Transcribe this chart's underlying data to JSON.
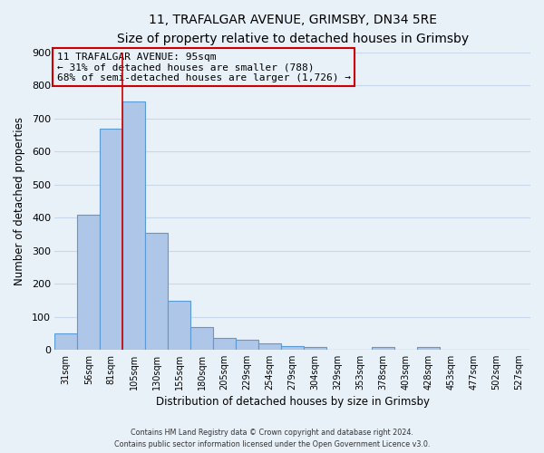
{
  "title": "11, TRAFALGAR AVENUE, GRIMSBY, DN34 5RE",
  "subtitle": "Size of property relative to detached houses in Grimsby",
  "xlabel": "Distribution of detached houses by size in Grimsby",
  "ylabel": "Number of detached properties",
  "bar_labels": [
    "31sqm",
    "56sqm",
    "81sqm",
    "105sqm",
    "130sqm",
    "155sqm",
    "180sqm",
    "205sqm",
    "229sqm",
    "254sqm",
    "279sqm",
    "304sqm",
    "329sqm",
    "353sqm",
    "378sqm",
    "403sqm",
    "428sqm",
    "453sqm",
    "477sqm",
    "502sqm",
    "527sqm"
  ],
  "bar_values": [
    50,
    410,
    670,
    750,
    355,
    150,
    70,
    38,
    30,
    20,
    12,
    8,
    0,
    0,
    8,
    0,
    10,
    0,
    0,
    0,
    0
  ],
  "bar_color": "#aec6e8",
  "bar_edge_color": "#5b9bd5",
  "grid_color": "#c8d8e8",
  "background_color": "#e8f0f8",
  "vline_x": 2.5,
  "vline_color": "#cc0000",
  "annotation_line1": "11 TRAFALGAR AVENUE: 95sqm",
  "annotation_line2": "← 31% of detached houses are smaller (788)",
  "annotation_line3": "68% of semi-detached houses are larger (1,726) →",
  "annotation_box_color": "#cc0000",
  "ylim": [
    0,
    900
  ],
  "yticks": [
    0,
    100,
    200,
    300,
    400,
    500,
    600,
    700,
    800,
    900
  ],
  "footer_line1": "Contains HM Land Registry data © Crown copyright and database right 2024.",
  "footer_line2": "Contains public sector information licensed under the Open Government Licence v3.0."
}
